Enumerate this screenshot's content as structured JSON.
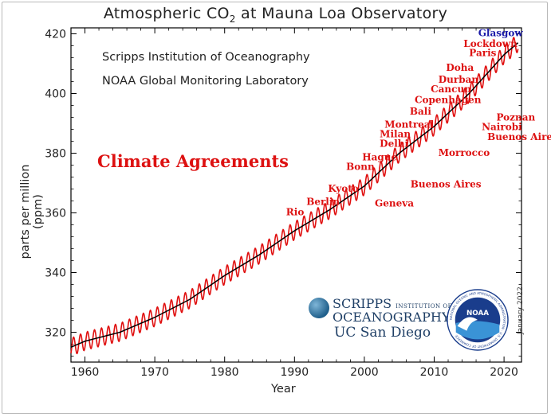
{
  "title_main": "Atmospheric CO",
  "title_sub": "2",
  "title_tail": " at Mauna Loa Observatory",
  "institutions": [
    "Scripps Institution of Oceanography",
    "NOAA Global Monitoring Laboratory"
  ],
  "annotation_heading": "Climate Agreements",
  "date_stamp": "January 2022",
  "logos": {
    "scripps_line1": "SCRIPPS",
    "scripps_line1_small": "INSTITUTION OF",
    "scripps_line2": "OCEANOGRAPHY",
    "ucsd": "UC San Diego",
    "noaa": "NOAA",
    "noaa_ring": "NATIONAL OCEANIC AND ATMOSPHERIC ADMINISTRATION · U.S. DEPARTMENT OF COMMERCE"
  },
  "colors": {
    "seasonal_line": "#e01010",
    "trend_line": "#000000",
    "agreement_text": "#dd1111",
    "latest_agreement_text": "#1a1aa8"
  },
  "chart_data": {
    "type": "line",
    "title": "Atmospheric CO2 at Mauna Loa Observatory",
    "xlabel": "Year",
    "ylabel": "parts per million (ppm)",
    "xlim": [
      1958,
      2022.5
    ],
    "ylim": [
      310,
      422
    ],
    "xticks": [
      1960,
      1970,
      1980,
      1990,
      2000,
      2010,
      2020
    ],
    "yticks": [
      320,
      340,
      360,
      380,
      400,
      420
    ],
    "grid": false,
    "series": [
      {
        "name": "monthly",
        "color": "#e01010",
        "seasonal_amplitude_ppm": 3,
        "x": [
          1958,
          1960,
          1965,
          1970,
          1975,
          1980,
          1985,
          1990,
          1995,
          2000,
          2005,
          2010,
          2015,
          2020,
          2022
        ],
        "y": [
          315,
          317,
          320,
          325,
          331,
          339,
          346,
          354,
          361,
          369,
          380,
          389,
          400,
          413,
          417
        ]
      },
      {
        "name": "trend",
        "color": "#000000",
        "x": [
          1958,
          1960,
          1965,
          1970,
          1975,
          1980,
          1985,
          1990,
          1995,
          2000,
          2005,
          2010,
          2015,
          2020,
          2022
        ],
        "y": [
          315,
          317,
          320,
          325,
          331,
          339,
          346,
          354,
          361,
          369,
          380,
          389,
          400,
          413,
          417
        ]
      }
    ],
    "annotations": [
      {
        "text": "Rio",
        "x": 1988.8,
        "y": 359.2
      },
      {
        "text": "Berlin",
        "x": 1991.7,
        "y": 362.7
      },
      {
        "text": "Kyoto",
        "x": 1994.8,
        "y": 367.1
      },
      {
        "text": "Geneva",
        "x": 2001.5,
        "y": 362.2
      },
      {
        "text": "Bonn",
        "x": 1997.4,
        "y": 374.4
      },
      {
        "text": "Hague",
        "x": 1999.7,
        "y": 377.6
      },
      {
        "text": "Buenos Aires",
        "x": 2006.6,
        "y": 368.6
      },
      {
        "text": "Delhi",
        "x": 2002.2,
        "y": 382.2
      },
      {
        "text": "Milan",
        "x": 2002.2,
        "y": 385.4
      },
      {
        "text": "Montreal",
        "x": 2002.9,
        "y": 388.6
      },
      {
        "text": "Morrocco",
        "x": 2010.6,
        "y": 379.1
      },
      {
        "text": "Bali",
        "x": 2006.5,
        "y": 393.0
      },
      {
        "text": "Copenhagen",
        "x": 2007.2,
        "y": 396.8
      },
      {
        "text": "Cancun",
        "x": 2009.5,
        "y": 400.4
      },
      {
        "text": "Durban",
        "x": 2010.6,
        "y": 403.6
      },
      {
        "text": "Doha",
        "x": 2011.7,
        "y": 407.6
      },
      {
        "text": "Paris",
        "x": 2015.0,
        "y": 412.6
      },
      {
        "text": "Lockdown",
        "x": 2014.2,
        "y": 415.6
      },
      {
        "text": "Glasgow",
        "x": 2016.3,
        "y": 419.2
      },
      {
        "text": "Poznan",
        "x": 2018.9,
        "y": 391.0
      },
      {
        "text": "Nairobi",
        "x": 2016.8,
        "y": 387.7
      },
      {
        "text": "Buenos Aires",
        "x": 2017.6,
        "y": 384.4
      }
    ]
  }
}
